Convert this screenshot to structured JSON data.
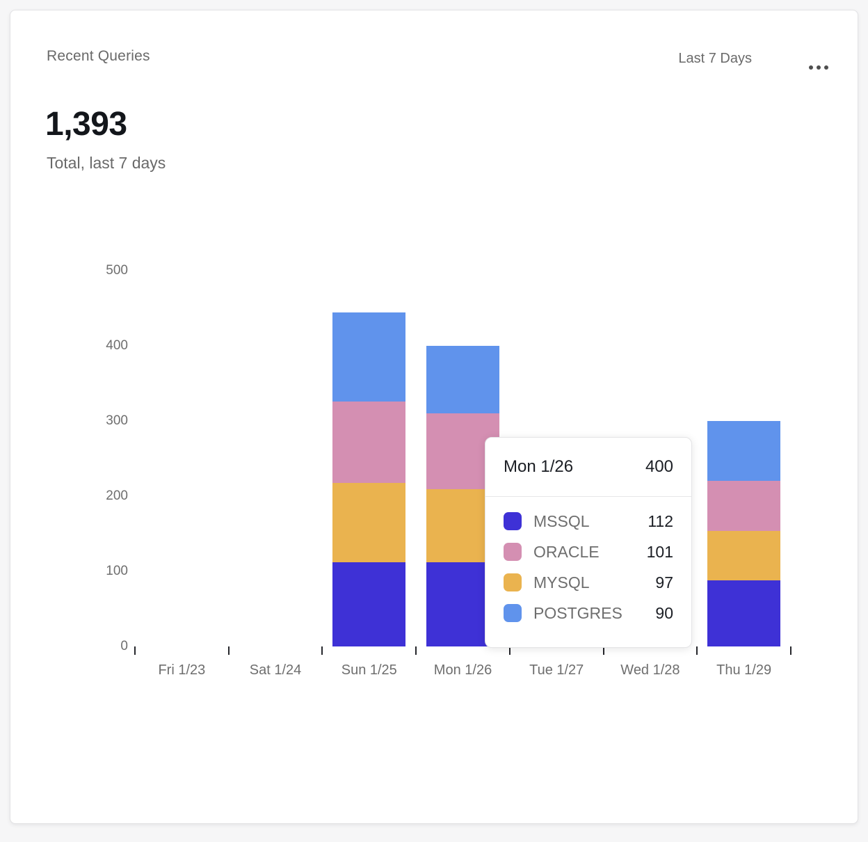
{
  "header": {
    "title": "Recent Queries",
    "range_label": "Last 7 Days",
    "menu_icon": "ellipsis-icon"
  },
  "summary": {
    "total": "1,393",
    "caption": "Total, last 7 days"
  },
  "chart_data": {
    "type": "bar",
    "stacked": true,
    "title": "Recent Queries",
    "categories": [
      "Fri 1/23",
      "Sat 1/24",
      "Sun 1/25",
      "Mon 1/26",
      "Tue 1/27",
      "Wed 1/28",
      "Thu 1/29"
    ],
    "series": [
      {
        "name": "MSSQL",
        "color": "#3E31D6",
        "values": [
          0,
          0,
          112,
          112,
          null,
          null,
          88
        ]
      },
      {
        "name": "MYSQL",
        "color": "#EAB34F",
        "values": [
          0,
          0,
          106,
          97,
          null,
          null,
          66
        ]
      },
      {
        "name": "ORACLE",
        "color": "#D48FB2",
        "values": [
          0,
          0,
          108,
          101,
          null,
          null,
          66
        ]
      },
      {
        "name": "POSTGRES",
        "color": "#6093EC",
        "values": [
          0,
          0,
          118,
          90,
          null,
          null,
          80
        ]
      }
    ],
    "stack_order_bottom_to_top": [
      "MSSQL",
      "MYSQL",
      "ORACLE",
      "POSTGRES"
    ],
    "ylim": [
      0,
      500
    ],
    "yticks": [
      0,
      100,
      200,
      300,
      400,
      500
    ],
    "grid": false,
    "legend_position": "tooltip-only",
    "occluded_categories": [
      "Tue 1/27",
      "Wed 1/28"
    ],
    "note": "Tue 1/27 and Wed 1/28 bars are hidden behind the hover tooltip"
  },
  "tooltip": {
    "title": "Mon 1/26",
    "total": "400",
    "rows": [
      {
        "label": "MSSQL",
        "value": "112",
        "color": "#3E31D6"
      },
      {
        "label": "ORACLE",
        "value": "101",
        "color": "#D48FB2"
      },
      {
        "label": "MYSQL",
        "value": "97",
        "color": "#EAB34F"
      },
      {
        "label": "POSTGRES",
        "value": "90",
        "color": "#6093EC"
      }
    ]
  },
  "colors": {
    "page_bg": "#f6f6f7",
    "card_bg": "#ffffff",
    "border": "#e2e2e4",
    "text_dark": "#1b1e24",
    "text_gray": "#6e6e6e",
    "tick": "#25262b"
  }
}
